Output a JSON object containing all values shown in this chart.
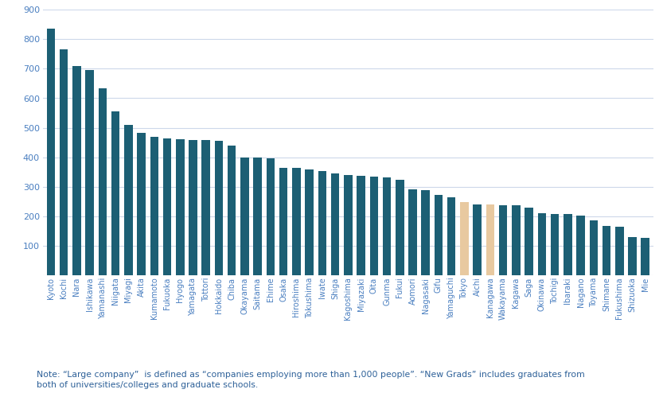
{
  "categories": [
    "Kyoto",
    "Kochi",
    "Nara",
    "Ishikawa",
    "Yamanashi",
    "Niigata",
    "Miyagi",
    "Akita",
    "Kumamoto",
    "Fukuoka",
    "Hyogo",
    "Yamagata",
    "Tottori",
    "Hokkaido",
    "Chiba",
    "Okayama",
    "Saitama",
    "Ehime",
    "Osaka",
    "Hiroshima",
    "Tokushima",
    "Iwate",
    "Shiga",
    "Kagoshima",
    "Miyazaki",
    "Oita",
    "Gunma",
    "Fukui",
    "Aomori",
    "Nagasaki",
    "Gifu",
    "Yamaguchi",
    "Tokyo",
    "Aichi",
    "Kanagawa",
    "Wakayama",
    "Kagawa",
    "Saga",
    "Okinawa",
    "Tochigi",
    "Ibaraki",
    "Nagano",
    "Toyama",
    "Shimane",
    "Fukushima",
    "Shizuoka",
    "Mie"
  ],
  "values": [
    835,
    765,
    710,
    695,
    635,
    555,
    510,
    483,
    470,
    465,
    462,
    458,
    458,
    455,
    440,
    400,
    398,
    395,
    365,
    363,
    358,
    352,
    345,
    340,
    337,
    335,
    332,
    322,
    290,
    288,
    272,
    263,
    248,
    240,
    240,
    238,
    236,
    230,
    210,
    208,
    207,
    203,
    185,
    168,
    165,
    130,
    125
  ],
  "bar_colors": [
    "#1c5f74",
    "#1c5f74",
    "#1c5f74",
    "#1c5f74",
    "#1c5f74",
    "#1c5f74",
    "#1c5f74",
    "#1c5f74",
    "#1c5f74",
    "#1c5f74",
    "#1c5f74",
    "#1c5f74",
    "#1c5f74",
    "#1c5f74",
    "#1c5f74",
    "#1c5f74",
    "#1c5f74",
    "#1c5f74",
    "#1c5f74",
    "#1c5f74",
    "#1c5f74",
    "#1c5f74",
    "#1c5f74",
    "#1c5f74",
    "#1c5f74",
    "#1c5f74",
    "#1c5f74",
    "#1c5f74",
    "#1c5f74",
    "#1c5f74",
    "#1c5f74",
    "#1c5f74",
    "#e8c9a0",
    "#1c5f74",
    "#e8c9a0",
    "#1c5f74",
    "#1c5f74",
    "#1c5f74",
    "#1c5f74",
    "#1c5f74",
    "#1c5f74",
    "#1c5f74",
    "#1c5f74",
    "#1c5f74",
    "#1c5f74",
    "#1c5f74",
    "#1c5f74"
  ],
  "ylim": [
    0,
    900
  ],
  "yticks": [
    0,
    100,
    200,
    300,
    400,
    500,
    600,
    700,
    800,
    900
  ],
  "background_color": "#ffffff",
  "note_text": "Note: “Large company”  is defined as “companies employing more than 1,000 people”. “New Grads” includes graduates from\nboth of universities/colleges and graduate schools.",
  "tick_color": "#4a7fc0",
  "grid_color": "#cdd8ea",
  "note_color": "#2d6098"
}
